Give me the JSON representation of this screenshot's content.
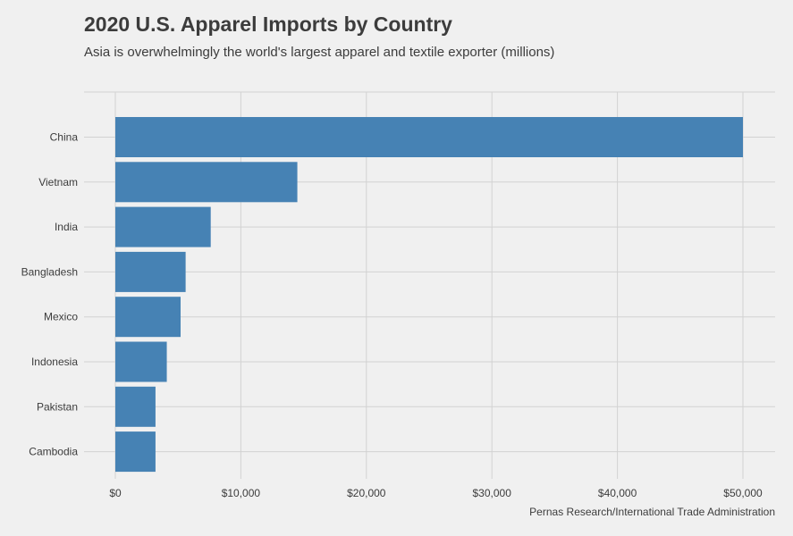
{
  "chart_data": {
    "type": "bar",
    "orientation": "horizontal",
    "title": "2020 U.S. Apparel Imports by Country",
    "subtitle": "Asia is overwhelmingly the world's largest apparel and textile exporter (millions)",
    "caption": "Pernas Research/International Trade Administration",
    "xlabel": "",
    "ylabel": "",
    "categories": [
      "China",
      "Vietnam",
      "India",
      "Bangladesh",
      "Mexico",
      "Indonesia",
      "Pakistan",
      "Cambodia"
    ],
    "values": [
      50000,
      14500,
      7600,
      5600,
      5200,
      4100,
      3200,
      3200
    ],
    "xlim": [
      0,
      52500
    ],
    "xticks": [
      0,
      10000,
      20000,
      30000,
      40000,
      50000
    ],
    "xtick_labels": [
      "$0",
      "$10,000",
      "$20,000",
      "$30,000",
      "$40,000",
      "$50,000"
    ],
    "bar_color": "#4682b4",
    "background_color": "#f0f0f0",
    "grid": true
  }
}
